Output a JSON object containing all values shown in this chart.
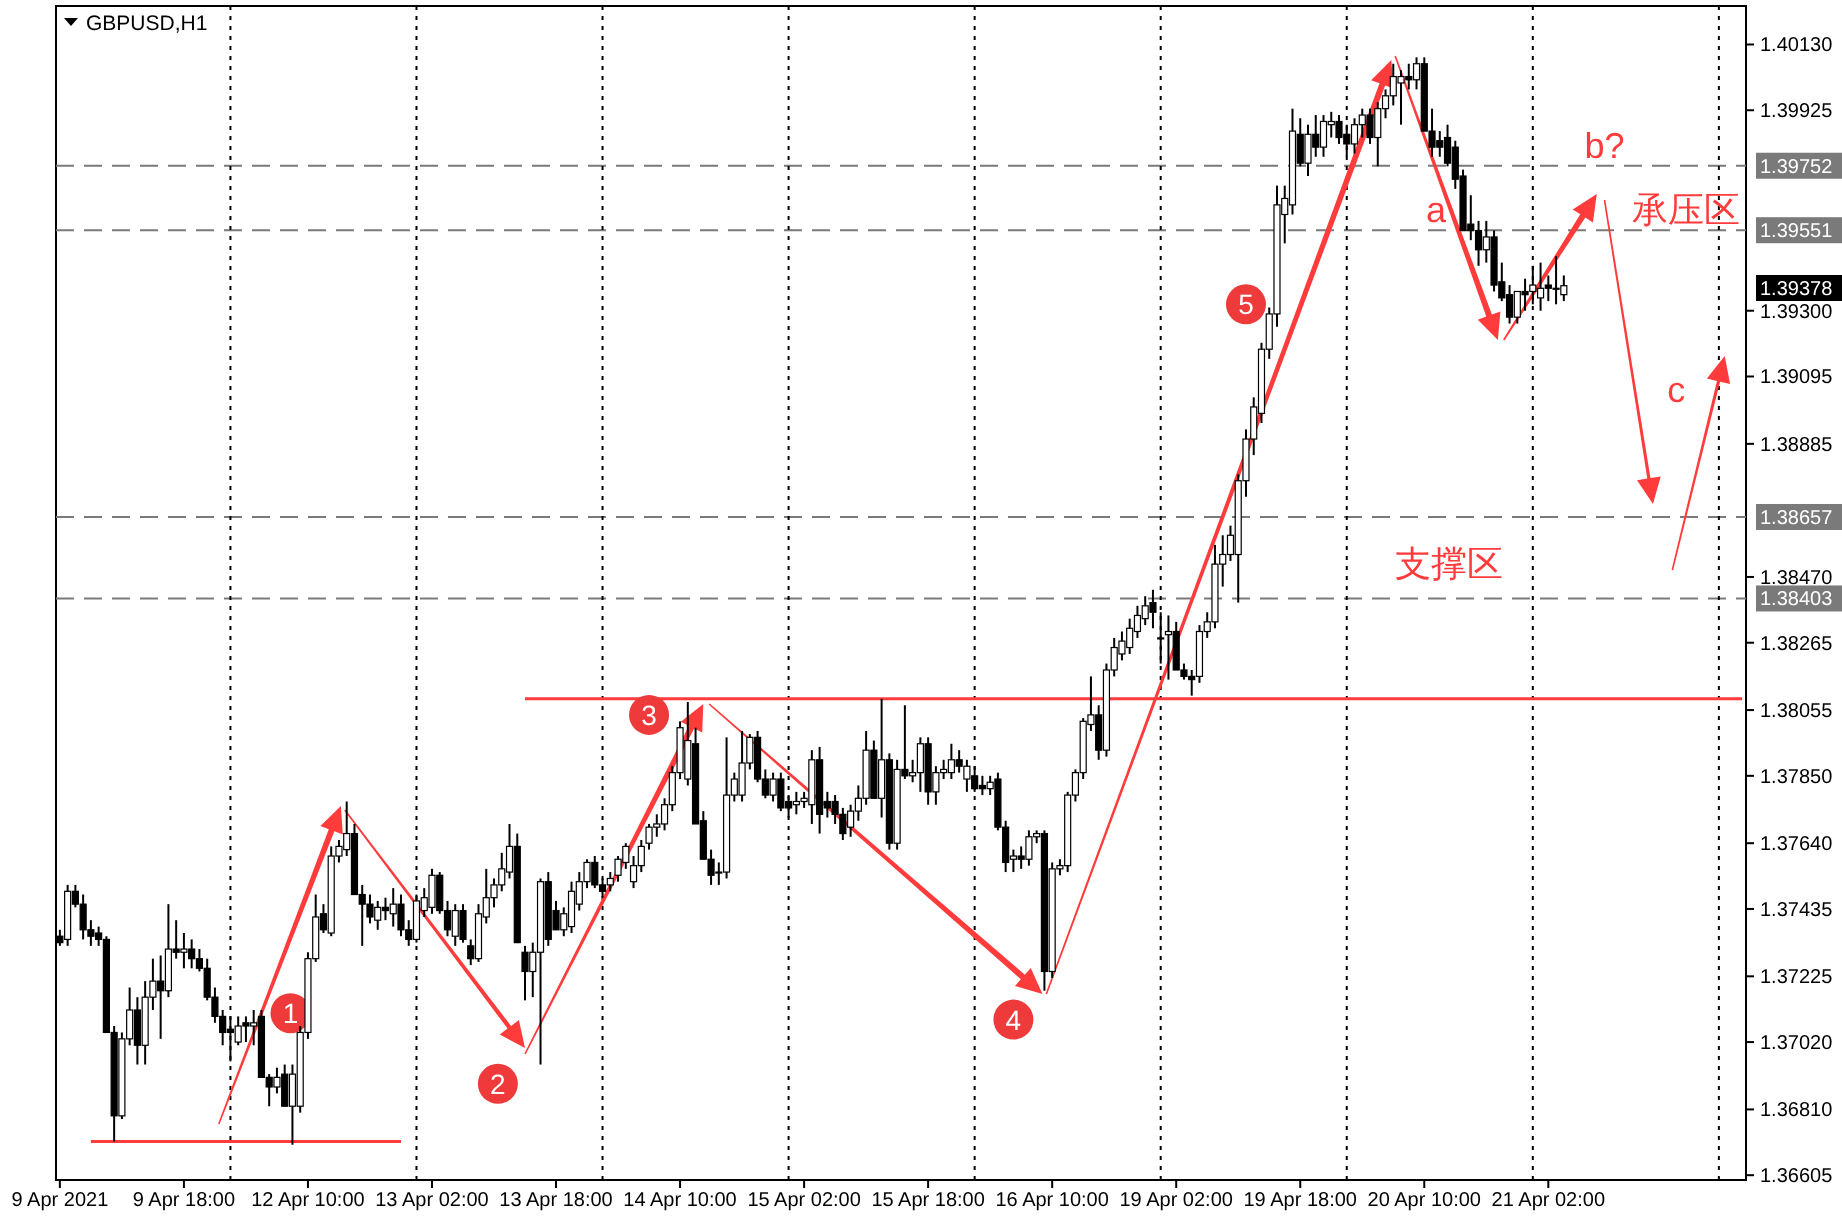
{
  "chart_data": {
    "type": "candlestick",
    "title": "GBPUSD,H1",
    "color": "#000000",
    "categories": [
      "9 Apr 2021",
      null,
      null,
      null,
      null,
      null,
      null,
      null,
      null,
      null,
      null,
      null,
      null,
      null,
      null,
      null,
      "9 Apr 18:00",
      null,
      null,
      null,
      null,
      null,
      null,
      null,
      null,
      null,
      null,
      null,
      null,
      null,
      null,
      null,
      "12 Apr 10:00",
      null,
      null,
      null,
      null,
      null,
      null,
      null,
      null,
      null,
      null,
      null,
      null,
      null,
      null,
      null,
      "13 Apr 02:00",
      null,
      null,
      null,
      null,
      null,
      null,
      null,
      null,
      null,
      null,
      null,
      null,
      null,
      null,
      null,
      "13 Apr 18:00",
      null,
      null,
      null,
      null,
      null,
      null,
      null,
      null,
      null,
      null,
      null,
      null,
      null,
      null,
      null,
      "14 Apr 10:00",
      null,
      null,
      null,
      null,
      null,
      null,
      null,
      null,
      null,
      null,
      null,
      null,
      null,
      null,
      null,
      "15 Apr 02:00",
      null,
      null,
      null,
      null,
      null,
      null,
      null,
      null,
      null,
      null,
      null,
      null,
      null,
      null,
      null,
      "15 Apr 18:00",
      null,
      null,
      null,
      null,
      null,
      null,
      null,
      null,
      null,
      null,
      null,
      null,
      null,
      null,
      null,
      "16 Apr 10:00",
      null,
      null,
      null,
      null,
      null,
      null,
      null,
      null,
      null,
      null,
      null,
      null,
      null,
      null,
      null,
      "19 Apr 02:00",
      null,
      null,
      null,
      null,
      null,
      null,
      null,
      null,
      null,
      null,
      null,
      null,
      null,
      null,
      null,
      "19 Apr 18:00",
      null,
      null,
      null,
      null,
      null,
      null,
      null,
      null,
      null,
      null,
      null,
      null,
      null,
      null,
      null,
      "20 Apr 10:00",
      null,
      null,
      null,
      null,
      null,
      null,
      null,
      null,
      null,
      null,
      null,
      null,
      null,
      null,
      null,
      "21 Apr 02:00",
      null,
      null,
      null,
      null,
      null,
      null,
      null,
      null,
      null,
      null,
      null,
      null,
      null,
      null,
      null,
      null,
      null,
      null,
      null,
      null,
      null,
      null,
      null,
      null,
      null
    ],
    "ohlc": [
      [
        1.3735,
        1.3737,
        1.3732,
        1.3733
      ],
      [
        1.3734,
        1.3751,
        1.3732,
        1.3749
      ],
      [
        1.3749,
        1.3751,
        1.3744,
        1.3745
      ],
      [
        1.3745,
        1.3748,
        1.3734,
        1.3737
      ],
      [
        1.3737,
        1.374,
        1.3732,
        1.3735
      ],
      [
        1.3736,
        1.3738,
        1.3732,
        1.3734
      ],
      [
        1.3734,
        1.3735,
        1.3705,
        1.3705
      ],
      [
        1.3705,
        1.3707,
        1.3671,
        1.3679
      ],
      [
        1.3679,
        1.3705,
        1.3678,
        1.3703
      ],
      [
        1.3703,
        1.3719,
        1.3701,
        1.3712
      ],
      [
        1.3712,
        1.3716,
        1.3695,
        1.3701
      ],
      [
        1.3701,
        1.3721,
        1.3695,
        1.3716
      ],
      [
        1.3716,
        1.3728,
        1.3712,
        1.3721
      ],
      [
        1.3721,
        1.3729,
        1.3703,
        1.3718
      ],
      [
        1.3718,
        1.3745,
        1.3716,
        1.3731
      ],
      [
        1.3731,
        1.374,
        1.3728,
        1.373
      ],
      [
        1.373,
        1.3736,
        1.3725,
        1.3731
      ],
      [
        1.3731,
        1.3734,
        1.3725,
        1.3728
      ],
      [
        1.3728,
        1.3731,
        1.3724,
        1.3725
      ],
      [
        1.3725,
        1.3728,
        1.3715,
        1.3716
      ],
      [
        1.3716,
        1.3719,
        1.3708,
        1.371
      ],
      [
        1.371,
        1.3712,
        1.3701,
        1.3705
      ],
      [
        1.3706,
        1.371,
        1.3696,
        1.3705
      ],
      [
        1.3702,
        1.371,
        1.3701,
        1.3707
      ],
      [
        1.3708,
        1.371,
        1.3702,
        1.3707
      ],
      [
        1.3707,
        1.3712,
        1.3701,
        1.3708
      ],
      [
        1.371,
        1.3712,
        1.3691,
        1.3691
      ],
      [
        1.3691,
        1.3692,
        1.3682,
        1.3688
      ],
      [
        1.3688,
        1.3694,
        1.3686,
        1.3691
      ],
      [
        1.3692,
        1.3695,
        1.3682,
        1.3682
      ],
      [
        1.3682,
        1.3695,
        1.367,
        1.3692
      ],
      [
        1.3682,
        1.3707,
        1.368,
        1.3705
      ],
      [
        1.3705,
        1.373,
        1.3703,
        1.3728
      ],
      [
        1.3728,
        1.3748,
        1.3727,
        1.3741
      ],
      [
        1.3742,
        1.3745,
        1.3736,
        1.3737
      ],
      [
        1.3736,
        1.3763,
        1.3735,
        1.376
      ],
      [
        1.376,
        1.3765,
        1.3758,
        1.3763
      ],
      [
        1.3762,
        1.3777,
        1.376,
        1.3767
      ],
      [
        1.3767,
        1.377,
        1.3748,
        1.3748
      ],
      [
        1.3748,
        1.3751,
        1.3732,
        1.3745
      ],
      [
        1.3745,
        1.3748,
        1.3739,
        1.3741
      ],
      [
        1.374,
        1.3746,
        1.3737,
        1.3744
      ],
      [
        1.3744,
        1.3747,
        1.374,
        1.3743
      ],
      [
        1.3742,
        1.375,
        1.3738,
        1.3745
      ],
      [
        1.3745,
        1.3748,
        1.3735,
        1.3737
      ],
      [
        1.3737,
        1.374,
        1.3732,
        1.3734
      ],
      [
        1.3734,
        1.3748,
        1.3733,
        1.3746
      ],
      [
        1.3743,
        1.375,
        1.3741,
        1.3747
      ],
      [
        1.3744,
        1.3756,
        1.3742,
        1.3754
      ],
      [
        1.3754,
        1.3755,
        1.3742,
        1.3743
      ],
      [
        1.3743,
        1.3746,
        1.3735,
        1.3737
      ],
      [
        1.3735,
        1.3745,
        1.3732,
        1.3743
      ],
      [
        1.3743,
        1.3745,
        1.3733,
        1.3734
      ],
      [
        1.3732,
        1.3734,
        1.3726,
        1.3728
      ],
      [
        1.3728,
        1.3745,
        1.3727,
        1.3742
      ],
      [
        1.3741,
        1.3756,
        1.3739,
        1.3747
      ],
      [
        1.3747,
        1.3753,
        1.3744,
        1.3751
      ],
      [
        1.3751,
        1.3761,
        1.3749,
        1.3756
      ],
      [
        1.3755,
        1.377,
        1.3753,
        1.3763
      ],
      [
        1.3763,
        1.3767,
        1.3733,
        1.3733
      ],
      [
        1.373,
        1.3732,
        1.3715,
        1.3724
      ],
      [
        1.3724,
        1.3733,
        1.3716,
        1.373
      ],
      [
        1.373,
        1.3753,
        1.3695,
        1.3752
      ],
      [
        1.3752,
        1.3755,
        1.3732,
        1.3734
      ],
      [
        1.3743,
        1.3746,
        1.3737,
        1.3737
      ],
      [
        1.3737,
        1.3744,
        1.3735,
        1.3742
      ],
      [
        1.3738,
        1.3752,
        1.3736,
        1.3749
      ],
      [
        1.3745,
        1.3755,
        1.3743,
        1.3752
      ],
      [
        1.3752,
        1.3759,
        1.375,
        1.3758
      ],
      [
        1.3758,
        1.376,
        1.375,
        1.3751
      ],
      [
        1.3751,
        1.3753,
        1.3747,
        1.3749
      ],
      [
        1.3751,
        1.3755,
        1.3749,
        1.3753
      ],
      [
        1.3754,
        1.376,
        1.3752,
        1.3759
      ],
      [
        1.3758,
        1.3764,
        1.3756,
        1.3763
      ],
      [
        1.3752,
        1.376,
        1.375,
        1.3757
      ],
      [
        1.3757,
        1.3765,
        1.3755,
        1.3763
      ],
      [
        1.3764,
        1.377,
        1.3762,
        1.3769
      ],
      [
        1.3769,
        1.3773,
        1.3766,
        1.377
      ],
      [
        1.377,
        1.3778,
        1.3768,
        1.3776
      ],
      [
        1.3776,
        1.3788,
        1.3774,
        1.3786
      ],
      [
        1.3786,
        1.3802,
        1.3784,
        1.38
      ],
      [
        1.3784,
        1.3808,
        1.3782,
        1.3796
      ],
      [
        1.3795,
        1.38,
        1.377,
        1.377
      ],
      [
        1.3771,
        1.3774,
        1.3759,
        1.3759
      ],
      [
        1.3759,
        1.3762,
        1.3751,
        1.3754
      ],
      [
        1.3755,
        1.3758,
        1.3751,
        1.3755
      ],
      [
        1.3755,
        1.3797,
        1.3753,
        1.3779
      ],
      [
        1.3779,
        1.3786,
        1.3777,
        1.3784
      ],
      [
        1.3779,
        1.3799,
        1.3777,
        1.3789
      ],
      [
        1.3789,
        1.3798,
        1.3787,
        1.3797
      ],
      [
        1.3797,
        1.3799,
        1.3783,
        1.3784
      ],
      [
        1.3784,
        1.3787,
        1.3778,
        1.3779
      ],
      [
        1.3779,
        1.3786,
        1.3777,
        1.3784
      ],
      [
        1.3784,
        1.3786,
        1.3774,
        1.3775
      ],
      [
        1.3777,
        1.3779,
        1.3772,
        1.3775
      ],
      [
        1.3776,
        1.378,
        1.3773,
        1.3777
      ],
      [
        1.3777,
        1.378,
        1.3775,
        1.3778
      ],
      [
        1.3776,
        1.3793,
        1.377,
        1.379
      ],
      [
        1.379,
        1.3794,
        1.3767,
        1.3773
      ],
      [
        1.3777,
        1.378,
        1.3772,
        1.3775
      ],
      [
        1.3777,
        1.3779,
        1.377,
        1.3773
      ],
      [
        1.3773,
        1.3775,
        1.3765,
        1.3767
      ],
      [
        1.3769,
        1.3776,
        1.3766,
        1.3774
      ],
      [
        1.3774,
        1.3782,
        1.3771,
        1.3778
      ],
      [
        1.3778,
        1.3799,
        1.3776,
        1.3793
      ],
      [
        1.3793,
        1.3796,
        1.3778,
        1.3778
      ],
      [
        1.3778,
        1.3809,
        1.3772,
        1.379
      ],
      [
        1.379,
        1.3792,
        1.3762,
        1.3764
      ],
      [
        1.3764,
        1.379,
        1.3762,
        1.3787
      ],
      [
        1.3787,
        1.3807,
        1.3784,
        1.3785
      ],
      [
        1.3785,
        1.379,
        1.3783,
        1.3786
      ],
      [
        1.3786,
        1.3797,
        1.378,
        1.3795
      ],
      [
        1.3795,
        1.3797,
        1.3776,
        1.378
      ],
      [
        1.378,
        1.3788,
        1.3776,
        1.3786
      ],
      [
        1.3786,
        1.379,
        1.3784,
        1.3787
      ],
      [
        1.3786,
        1.3795,
        1.3784,
        1.379
      ],
      [
        1.379,
        1.3793,
        1.3786,
        1.3788
      ],
      [
        1.3784,
        1.379,
        1.378,
        1.3788
      ],
      [
        1.3785,
        1.3788,
        1.378,
        1.3781
      ],
      [
        1.3782,
        1.3785,
        1.3779,
        1.3781
      ],
      [
        1.3781,
        1.3785,
        1.3779,
        1.3783
      ],
      [
        1.3784,
        1.3786,
        1.3768,
        1.3769
      ],
      [
        1.3769,
        1.3771,
        1.3755,
        1.3758
      ],
      [
        1.3759,
        1.3762,
        1.3755,
        1.376
      ],
      [
        1.376,
        1.3763,
        1.3756,
        1.3759
      ],
      [
        1.3759,
        1.3768,
        1.3757,
        1.3766
      ],
      [
        1.3766,
        1.3768,
        1.3764,
        1.3767
      ],
      [
        1.3767,
        1.3768,
        1.3718,
        1.3724
      ],
      [
        1.3724,
        1.3758,
        1.3722,
        1.3756
      ],
      [
        1.3756,
        1.3759,
        1.3754,
        1.3757
      ],
      [
        1.3757,
        1.378,
        1.3755,
        1.3779
      ],
      [
        1.3779,
        1.3787,
        1.3777,
        1.3786
      ],
      [
        1.3786,
        1.3803,
        1.3784,
        1.3802
      ],
      [
        1.3801,
        1.3816,
        1.3799,
        1.3804
      ],
      [
        1.3804,
        1.3807,
        1.379,
        1.3793
      ],
      [
        1.3793,
        1.382,
        1.3791,
        1.3818
      ],
      [
        1.3818,
        1.3828,
        1.3816,
        1.3825
      ],
      [
        1.3823,
        1.383,
        1.3821,
        1.3827
      ],
      [
        1.3825,
        1.3834,
        1.3823,
        1.3831
      ],
      [
        1.383,
        1.3838,
        1.3828,
        1.3835
      ],
      [
        1.3834,
        1.3841,
        1.3832,
        1.3838
      ],
      [
        1.3839,
        1.3843,
        1.3831,
        1.3836
      ],
      [
        1.3828,
        1.3836,
        1.382,
        1.3828
      ],
      [
        1.3829,
        1.3835,
        1.3815,
        1.383
      ],
      [
        1.383,
        1.3833,
        1.3818,
        1.3818
      ],
      [
        1.3818,
        1.382,
        1.3815,
        1.3816
      ],
      [
        1.3816,
        1.3818,
        1.381,
        1.3815
      ],
      [
        1.3816,
        1.3832,
        1.3814,
        1.383
      ],
      [
        1.383,
        1.3836,
        1.3828,
        1.3833
      ],
      [
        1.3833,
        1.3857,
        1.3831,
        1.3851
      ],
      [
        1.3851,
        1.386,
        1.3844,
        1.3854
      ],
      [
        1.3854,
        1.3863,
        1.3852,
        1.386
      ],
      [
        1.3854,
        1.3879,
        1.3839,
        1.3877
      ],
      [
        1.3877,
        1.3893,
        1.3872,
        1.389
      ],
      [
        1.389,
        1.3903,
        1.3885,
        1.39
      ],
      [
        1.3898,
        1.392,
        1.3895,
        1.3918
      ],
      [
        1.3918,
        1.3931,
        1.3915,
        1.3929
      ],
      [
        1.3929,
        1.3969,
        1.3925,
        1.3963
      ],
      [
        1.396,
        1.3969,
        1.3951,
        1.3965
      ],
      [
        1.3963,
        1.3993,
        1.396,
        1.3986
      ],
      [
        1.3985,
        1.399,
        1.3975,
        1.3976
      ],
      [
        1.3976,
        1.3988,
        1.3972,
        1.3985
      ],
      [
        1.3985,
        1.3991,
        1.3978,
        1.3981
      ],
      [
        1.3981,
        1.3991,
        1.3978,
        1.3989
      ],
      [
        1.3988,
        1.3992,
        1.3984,
        1.3989
      ],
      [
        1.3989,
        1.3991,
        1.3982,
        1.3984
      ],
      [
        1.3985,
        1.3988,
        1.3978,
        1.3982
      ],
      [
        1.3982,
        1.399,
        1.3979,
        1.3988
      ],
      [
        1.3988,
        1.3993,
        1.3984,
        1.3991
      ],
      [
        1.3991,
        1.3993,
        1.3982,
        1.3984
      ],
      [
        1.3984,
        1.3995,
        1.3975,
        1.3993
      ],
      [
        1.3993,
        1.3999,
        1.399,
        1.3997
      ],
      [
        1.3997,
        1.4007,
        1.3994,
        1.4003
      ],
      [
        1.4001,
        1.4005,
        1.3988,
        1.4003
      ],
      [
        1.4003,
        1.4007,
        1.3999,
        1.4002
      ],
      [
        1.4002,
        1.4009,
        1.3999,
        1.4007
      ],
      [
        1.4007,
        1.4009,
        1.3986,
        1.3986
      ],
      [
        1.3986,
        1.3993,
        1.3978,
        1.3981
      ],
      [
        1.3983,
        1.3986,
        1.3978,
        1.3981
      ],
      [
        1.3984,
        1.3988,
        1.3975,
        1.3976
      ],
      [
        1.3981,
        1.3983,
        1.3968,
        1.3971
      ],
      [
        1.3972,
        1.3974,
        1.3955,
        1.3955
      ],
      [
        1.3957,
        1.3966,
        1.3952,
        1.3955
      ],
      [
        1.3955,
        1.3958,
        1.3944,
        1.3949
      ],
      [
        1.3949,
        1.3958,
        1.3945,
        1.3953
      ],
      [
        1.3953,
        1.3955,
        1.3936,
        1.3938
      ],
      [
        1.3939,
        1.3945,
        1.3933,
        1.3934
      ],
      [
        1.3935,
        1.3938,
        1.3926,
        1.3928
      ],
      [
        1.3928,
        1.3936,
        1.3926,
        1.3936
      ],
      [
        1.3936,
        1.394,
        1.393,
        1.3935
      ],
      [
        1.3936,
        1.3944,
        1.3932,
        1.3938
      ],
      [
        1.3934,
        1.3945,
        1.393,
        1.3937
      ],
      [
        1.3938,
        1.3941,
        1.3933,
        1.3937
      ],
      [
        1.3937,
        1.3947,
        1.3932,
        1.3937
      ],
      [
        1.3935,
        1.3941,
        1.3933,
        1.39378
      ],
      null,
      null,
      null,
      null,
      null,
      null,
      null,
      null,
      null,
      null,
      null,
      null,
      null,
      null,
      null,
      null,
      null,
      null,
      null,
      null,
      null,
      null,
      null
    ],
    "series": [
      {
        "type": "line",
        "color": "#ff3b3b",
        "values": [
          null,
          null,
          null,
          null,
          1.3671,
          1.3671,
          1.3671,
          1.3671,
          1.3671,
          1.3671,
          1.3671,
          1.3671,
          1.3671,
          1.3671,
          1.3671,
          1.3671,
          1.3671,
          1.3671,
          1.3671,
          1.3671,
          1.3671,
          1.3671,
          1.3671,
          1.3671,
          1.3671,
          1.3671,
          1.3671,
          1.3671,
          1.3671,
          1.3671,
          1.3671,
          1.3671,
          1.3671,
          1.3671,
          1.3671,
          1.3671,
          1.3671,
          1.3671,
          1.3671,
          1.3671,
          1.3671,
          1.3671,
          1.3671,
          1.3671,
          1.3671,
          null,
          null,
          null,
          null,
          null,
          null,
          null,
          null,
          null,
          null,
          null,
          null,
          null,
          null,
          null,
          null,
          null,
          null,
          null,
          null,
          null,
          null,
          null,
          null,
          null,
          null,
          null,
          null,
          null,
          null,
          null,
          null,
          null,
          null,
          null,
          null,
          null,
          null,
          null,
          null,
          null,
          null,
          null,
          null,
          null,
          null,
          null,
          null,
          null,
          null,
          null,
          null,
          null,
          null,
          null,
          null,
          null,
          null,
          null,
          null,
          null,
          null,
          null,
          null,
          null,
          null,
          null,
          null,
          null,
          null,
          null,
          null,
          null,
          null,
          null,
          null,
          null,
          null,
          null,
          null,
          null,
          null,
          null,
          null,
          null,
          null,
          null,
          null,
          null,
          null,
          null,
          null,
          null,
          null,
          null,
          null,
          null,
          null,
          null,
          null,
          null,
          null,
          null,
          null,
          null,
          null,
          null,
          null,
          null,
          null,
          null,
          null,
          null,
          null,
          null,
          null,
          null,
          null,
          null,
          null,
          null,
          null,
          null,
          null,
          null,
          null,
          null,
          null,
          null,
          null,
          null,
          null,
          null,
          null,
          null,
          null,
          null,
          null,
          null,
          null,
          null,
          null,
          null,
          null,
          null,
          null,
          null,
          null,
          null,
          null,
          null,
          null,
          null,
          null,
          null,
          null,
          null,
          null,
          null,
          null,
          null,
          null,
          null,
          null,
          null,
          null,
          null,
          null,
          null,
          null,
          null,
          null,
          null
        ]
      },
      {
        "type": "line",
        "color": "#ff3b3b",
        "values": [
          null,
          null,
          null,
          null,
          null,
          null,
          null,
          null,
          null,
          null,
          null,
          null,
          null,
          null,
          null,
          null,
          null,
          null,
          null,
          null,
          null,
          null,
          null,
          null,
          null,
          null,
          null,
          null,
          null,
          null,
          null,
          null,
          null,
          null,
          null,
          null,
          null,
          null,
          null,
          null,
          null,
          null,
          null,
          null,
          null,
          null,
          null,
          null,
          null,
          null,
          null,
          null,
          null,
          null,
          null,
          null,
          null,
          null,
          null,
          null,
          1.3809,
          1.3809,
          1.3809,
          1.3809,
          1.3809,
          1.3809,
          1.3809,
          1.3809,
          1.3809,
          1.3809,
          1.3809,
          1.3809,
          1.3809,
          1.3809,
          1.3809,
          1.3809,
          1.3809,
          1.3809,
          1.3809,
          1.3809,
          1.3809,
          1.3809,
          1.3809,
          1.3809,
          1.3809,
          1.3809,
          1.3809,
          1.3809,
          1.3809,
          1.3809,
          1.3809,
          1.3809,
          1.3809,
          1.3809,
          1.3809,
          1.3809,
          1.3809,
          1.3809,
          1.3809,
          1.3809,
          1.3809,
          1.3809,
          1.3809,
          1.3809,
          1.3809,
          1.3809,
          1.3809,
          1.3809,
          1.3809,
          1.3809,
          1.3809,
          1.3809,
          1.3809,
          1.3809,
          1.3809,
          1.3809,
          1.3809,
          1.3809,
          1.3809,
          1.3809,
          1.3809,
          1.3809,
          1.3809,
          1.3809,
          1.3809,
          1.3809,
          1.3809,
          1.3809,
          1.3809,
          1.3809,
          1.3809,
          1.3809,
          1.3809,
          1.3809,
          1.3809,
          1.3809,
          1.3809,
          1.3809,
          1.3809,
          1.3809,
          1.3809,
          1.3809,
          1.3809,
          1.3809,
          1.3809,
          1.3809,
          1.3809,
          1.3809,
          1.3809,
          1.3809,
          1.3809,
          1.3809,
          1.3809,
          1.3809,
          1.3809,
          1.3809,
          1.3809,
          1.3809,
          1.3809,
          1.3809,
          1.3809,
          1.3809,
          1.3809,
          1.3809,
          1.3809,
          1.3809,
          1.3809,
          1.3809,
          1.3809,
          1.3809,
          1.3809,
          1.3809,
          1.3809,
          1.3809,
          1.3809,
          1.3809,
          1.3809,
          1.3809,
          1.3809,
          1.3809,
          1.3809,
          1.3809,
          1.3809,
          1.3809,
          1.3809,
          1.3809,
          1.3809,
          1.3809,
          1.3809,
          1.3809,
          1.3809,
          1.3809,
          1.3809,
          1.3809,
          1.3809,
          1.3809,
          1.3809,
          1.3809,
          1.3809,
          1.3809,
          1.3809,
          1.3809,
          1.3809,
          1.3809,
          1.3809,
          1.3809,
          1.3809,
          1.3809,
          1.3809,
          1.3809,
          1.3809,
          1.3809,
          1.3809,
          1.3809,
          1.3809,
          1.3809,
          1.3809,
          1.3809
        ]
      }
    ],
    "ylim": [
      1.3659,
      1.4025
    ],
    "yticks": [
      {
        "value": 1.36605,
        "label": "1.36605"
      },
      {
        "value": 1.3681,
        "label": "1.36810"
      },
      {
        "value": 1.3702,
        "label": "1.37020"
      },
      {
        "value": 1.37225,
        "label": "1.37225"
      },
      {
        "value": 1.37435,
        "label": "1.37435"
      },
      {
        "value": 1.3764,
        "label": "1.37640"
      },
      {
        "value": 1.3785,
        "label": "1.37850"
      },
      {
        "value": 1.38055,
        "label": "1.38055"
      },
      {
        "value": 1.38265,
        "label": "1.38265"
      },
      {
        "value": 1.3847,
        "label": "1.38470"
      },
      {
        "value": 1.38885,
        "label": "1.38885"
      },
      {
        "value": 1.39095,
        "label": "1.39095"
      },
      {
        "value": 1.393,
        "label": "1.39300"
      },
      {
        "value": 1.39925,
        "label": "1.39925"
      },
      {
        "value": 1.4013,
        "label": "1.40130"
      }
    ],
    "ref_lines": [
      {
        "axis": "y",
        "value": 1.39752,
        "label": "1.39752",
        "color": "#7a7a7a",
        "line_style": "dashed"
      },
      {
        "axis": "y",
        "value": 1.39551,
        "label": "1.39551",
        "color": "#7a7a7a",
        "line_style": "dashed"
      },
      {
        "axis": "y",
        "value": 1.38657,
        "label": "1.38657",
        "color": "#7a7a7a",
        "line_style": "dashed"
      },
      {
        "axis": "y",
        "value": 1.38403,
        "label": "1.38403",
        "color": "#7a7a7a",
        "line_style": "dashed"
      }
    ],
    "annotations": [
      {
        "text": "1",
        "y": 1.3711
      },
      {
        "text": "2",
        "y": 1.3689
      },
      {
        "text": "3",
        "y": 1.3804
      },
      {
        "text": "4",
        "y": 1.3709
      },
      {
        "text": "5",
        "y": 1.3932
      },
      "a",
      "b?",
      "c",
      "承压区",
      "支撑区",
      "1.39378"
    ]
  }
}
